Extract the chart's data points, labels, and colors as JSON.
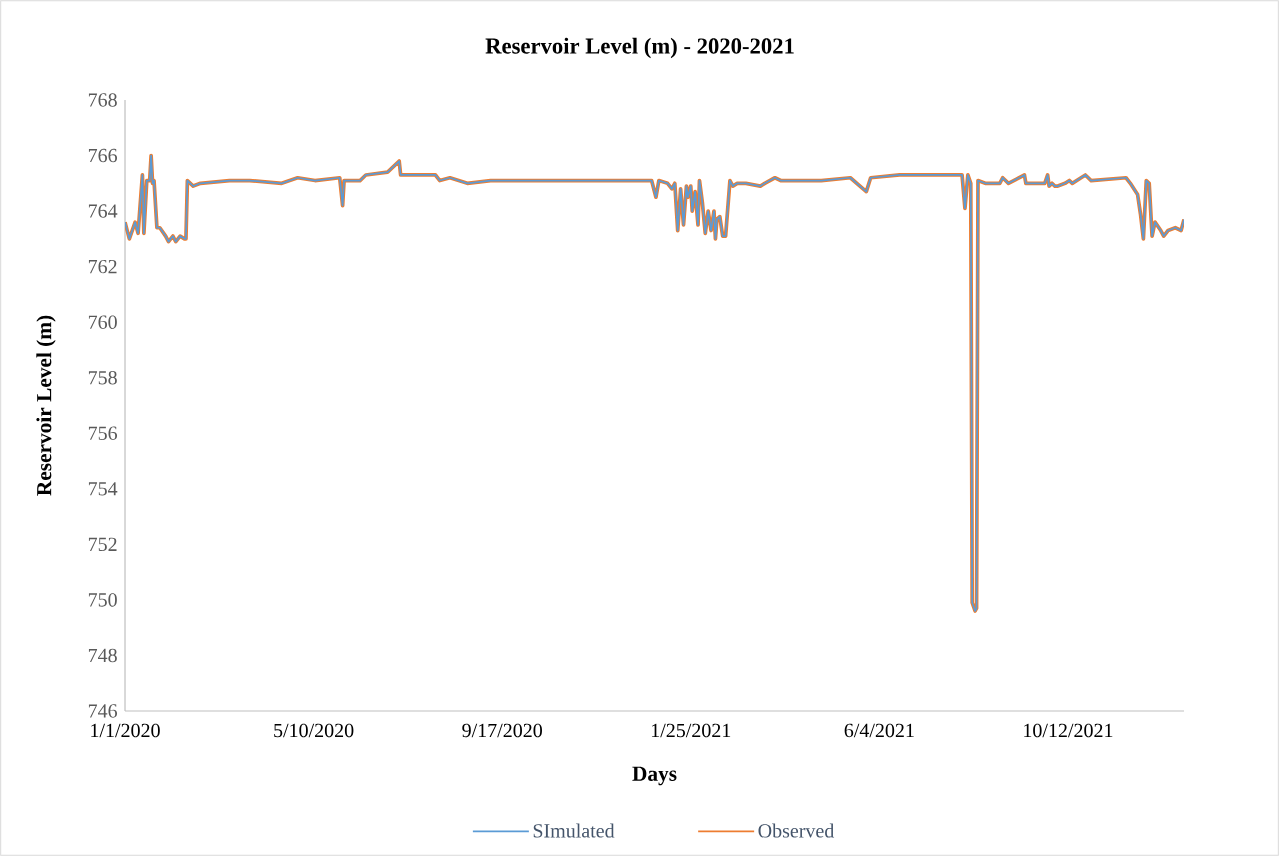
{
  "chart_data": {
    "type": "line",
    "title": "Reservoir Level (m) - 2020-2021",
    "xlabel": "Days",
    "ylabel": "Reservoir Level (m)",
    "x": [
      "2020-01-01",
      "2020-01-04",
      "2020-01-08",
      "2020-01-10",
      "2020-01-13",
      "2020-01-14",
      "2020-01-16",
      "2020-01-18",
      "2020-01-19",
      "2020-01-20",
      "2020-01-21",
      "2020-01-23",
      "2020-01-25",
      "2020-01-29",
      "2020-01-31",
      "2020-02-03",
      "2020-02-05",
      "2020-02-08",
      "2020-02-11",
      "2020-02-12",
      "2020-02-13",
      "2020-02-17",
      "2020-02-22",
      "2020-03-13",
      "2020-03-27",
      "2020-04-18",
      "2020-04-29",
      "2020-05-11",
      "2020-05-28",
      "2020-05-30",
      "2020-05-31",
      "2020-06-11",
      "2020-06-15",
      "2020-06-30",
      "2020-07-08",
      "2020-07-09",
      "2020-07-22",
      "2020-08-02",
      "2020-08-05",
      "2020-08-12",
      "2020-08-24",
      "2020-09-09",
      "2020-09-29",
      "2020-10-27",
      "2020-11-24",
      "2020-12-29",
      "2021-01-01",
      "2021-01-03",
      "2021-01-09",
      "2021-01-12",
      "2021-01-14",
      "2021-01-16",
      "2021-01-18",
      "2021-01-20",
      "2021-01-22",
      "2021-01-23",
      "2021-01-25",
      "2021-01-26",
      "2021-01-28",
      "2021-01-30",
      "2021-01-31",
      "2021-02-02",
      "2021-02-04",
      "2021-02-06",
      "2021-02-08",
      "2021-02-10",
      "2021-02-11",
      "2021-02-12",
      "2021-02-14",
      "2021-02-16",
      "2021-02-18",
      "2021-02-21",
      "2021-02-23",
      "2021-02-26",
      "2021-03-04",
      "2021-03-14",
      "2021-03-17",
      "2021-03-24",
      "2021-03-28",
      "2021-04-25",
      "2021-05-15",
      "2021-05-26",
      "2021-05-29",
      "2021-06-18",
      "2021-07-09",
      "2021-07-25",
      "2021-07-31",
      "2021-08-02",
      "2021-08-04",
      "2021-08-06",
      "2021-08-07",
      "2021-08-09",
      "2021-08-10",
      "2021-08-11",
      "2021-08-16",
      "2021-08-26",
      "2021-08-28",
      "2021-09-01",
      "2021-09-12",
      "2021-09-13",
      "2021-09-26",
      "2021-09-28",
      "2021-09-29",
      "2021-10-01",
      "2021-10-03",
      "2021-10-05",
      "2021-10-10",
      "2021-10-13",
      "2021-10-15",
      "2021-10-24",
      "2021-10-28",
      "2021-11-21",
      "2021-11-24",
      "2021-11-29",
      "2021-12-01",
      "2021-12-03",
      "2021-12-05",
      "2021-12-07",
      "2021-12-09",
      "2021-12-11",
      "2021-12-15",
      "2021-12-17",
      "2021-12-20",
      "2021-12-25",
      "2021-12-29",
      "2021-12-31"
    ],
    "series": [
      {
        "name": "SImulated",
        "color": "#5b9bd5",
        "values": [
          763.6,
          763.0,
          763.6,
          763.2,
          765.3,
          763.2,
          765.1,
          765.1,
          766.0,
          765.0,
          765.1,
          763.4,
          763.4,
          763.1,
          762.9,
          763.1,
          762.9,
          763.1,
          763.0,
          763.0,
          765.1,
          764.9,
          765.0,
          765.1,
          765.1,
          765.0,
          765.2,
          765.1,
          765.2,
          764.2,
          765.1,
          765.1,
          765.3,
          765.4,
          765.8,
          765.3,
          765.3,
          765.3,
          765.1,
          765.2,
          765.0,
          765.1,
          765.1,
          765.1,
          765.1,
          765.1,
          764.5,
          765.1,
          765.0,
          764.8,
          765.0,
          763.3,
          764.8,
          763.5,
          764.9,
          764.5,
          764.9,
          764.0,
          764.7,
          763.5,
          765.1,
          764.3,
          763.2,
          764.0,
          763.3,
          764.0,
          763.0,
          763.7,
          763.8,
          763.1,
          763.1,
          765.1,
          764.9,
          765.0,
          765.0,
          764.9,
          765.0,
          765.2,
          765.1,
          765.1,
          765.2,
          764.7,
          765.2,
          765.3,
          765.3,
          765.3,
          765.3,
          764.1,
          765.3,
          765.0,
          749.9,
          749.6,
          749.7,
          765.1,
          765.0,
          765.0,
          765.2,
          765.0,
          765.3,
          765.0,
          765.0,
          765.3,
          764.9,
          765.0,
          764.9,
          764.9,
          765.0,
          765.1,
          765.0,
          765.3,
          765.1,
          765.2,
          765.0,
          764.6,
          763.9,
          763.0,
          765.1,
          765.0,
          763.1,
          763.6,
          763.3,
          763.1,
          763.3,
          763.4,
          763.3,
          763.7
        ]
      },
      {
        "name": "Observed",
        "color": "#ed7d31",
        "values": [
          763.6,
          763.0,
          763.6,
          763.2,
          765.3,
          763.2,
          765.1,
          765.1,
          766.0,
          765.0,
          765.1,
          763.4,
          763.4,
          763.1,
          762.9,
          763.1,
          762.9,
          763.1,
          763.0,
          763.0,
          765.1,
          764.9,
          765.0,
          765.1,
          765.1,
          765.0,
          765.2,
          765.1,
          765.2,
          764.2,
          765.1,
          765.1,
          765.3,
          765.4,
          765.8,
          765.3,
          765.3,
          765.3,
          765.1,
          765.2,
          765.0,
          765.1,
          765.1,
          765.1,
          765.1,
          765.1,
          764.5,
          765.1,
          765.0,
          764.8,
          765.0,
          763.3,
          764.8,
          763.5,
          764.9,
          764.5,
          764.9,
          764.0,
          764.7,
          763.5,
          765.1,
          764.3,
          763.2,
          764.0,
          763.3,
          764.0,
          763.0,
          763.7,
          763.8,
          763.1,
          763.1,
          765.1,
          764.9,
          765.0,
          765.0,
          764.9,
          765.0,
          765.2,
          765.1,
          765.1,
          765.2,
          764.7,
          765.2,
          765.3,
          765.3,
          765.3,
          765.3,
          764.1,
          765.3,
          765.0,
          749.9,
          749.6,
          749.7,
          765.1,
          765.0,
          765.0,
          765.2,
          765.0,
          765.3,
          765.0,
          765.0,
          765.3,
          764.9,
          765.0,
          764.9,
          764.9,
          765.0,
          765.1,
          765.0,
          765.3,
          765.1,
          765.2,
          765.0,
          764.6,
          763.9,
          763.0,
          765.1,
          765.0,
          763.1,
          763.6,
          763.3,
          763.1,
          763.3,
          763.4,
          763.3,
          763.7
        ]
      }
    ],
    "xlim": [
      "2020-01-01",
      "2021-12-31"
    ],
    "xticks": [
      {
        "value": "2020-01-01",
        "label": "1/1/2020"
      },
      {
        "value": "2020-05-10",
        "label": "5/10/2020"
      },
      {
        "value": "2020-09-17",
        "label": "9/17/2020"
      },
      {
        "value": "2021-01-25",
        "label": "1/25/2021"
      },
      {
        "value": "2021-06-04",
        "label": "6/4/2021"
      },
      {
        "value": "2021-10-12",
        "label": "10/12/2021"
      }
    ],
    "ylim": [
      746,
      768
    ],
    "yticks": [
      746,
      748,
      750,
      752,
      754,
      756,
      758,
      760,
      762,
      764,
      766,
      768
    ],
    "grid": false,
    "legend": "bottom",
    "marker": "none",
    "line_style": "solid"
  }
}
